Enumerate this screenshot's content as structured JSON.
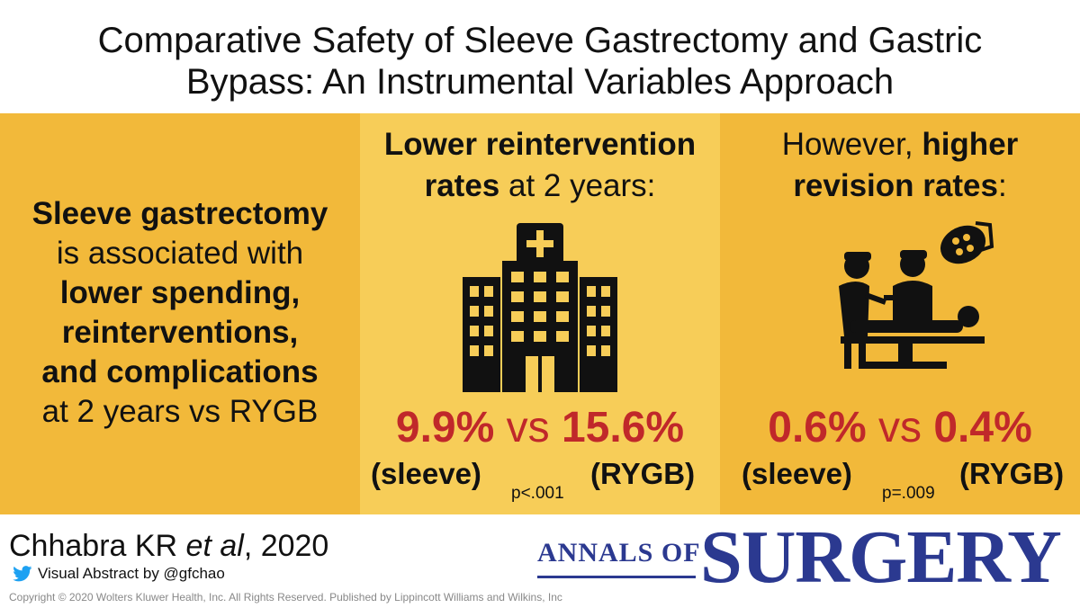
{
  "title": {
    "line1": "Comparative Safety of Sleeve Gastrectomy and Gastric",
    "line2": "Bypass: An Instrumental Variables Approach"
  },
  "panel1": {
    "l1": "Sleeve gastrectomy",
    "l2": "is associated with",
    "l3": "lower spending,",
    "l4": "reinterventions,",
    "l5": "and complications",
    "l6": "at 2 years vs RYGB"
  },
  "panel2": {
    "head_bold": "Lower reintervention",
    "head_bold2": "rates",
    "head_rest": " at 2 years:",
    "icon": "hospital-icon",
    "sleeve_value": "9.9%",
    "vs": "vs",
    "rygb_value": "15.6%",
    "sleeve_label": "(sleeve)",
    "rygb_label": "(RYGB)",
    "p_value": "p<.001"
  },
  "panel3": {
    "head_pre": "However, ",
    "head_bold": "higher",
    "head_bold2": "revision rates",
    "head_colon": ":",
    "icon": "surgery-icon",
    "sleeve_value": "0.6%",
    "vs": "vs",
    "rygb_value": "0.4%",
    "sleeve_label": "(sleeve)",
    "rygb_label": "(RYGB)",
    "p_value": "p=.009"
  },
  "footer": {
    "cite_author": "Chhabra KR ",
    "cite_etal": "et al",
    "cite_year": ", 2020",
    "visual_abstract": "Visual Abstract by @gfchao",
    "copyright": "Copyright © 2020 Wolters Kluwer Health, Inc. All Rights Reserved. Published by Lippincott Williams and Wilkins, Inc",
    "journal_small": "ANNALS OF",
    "journal_big": "SURGERY"
  },
  "colors": {
    "orange": "#f2b93a",
    "light_orange": "#f7cd58",
    "red": "#c0282a",
    "navy": "#2b3990",
    "twitter": "#1da1f2"
  }
}
